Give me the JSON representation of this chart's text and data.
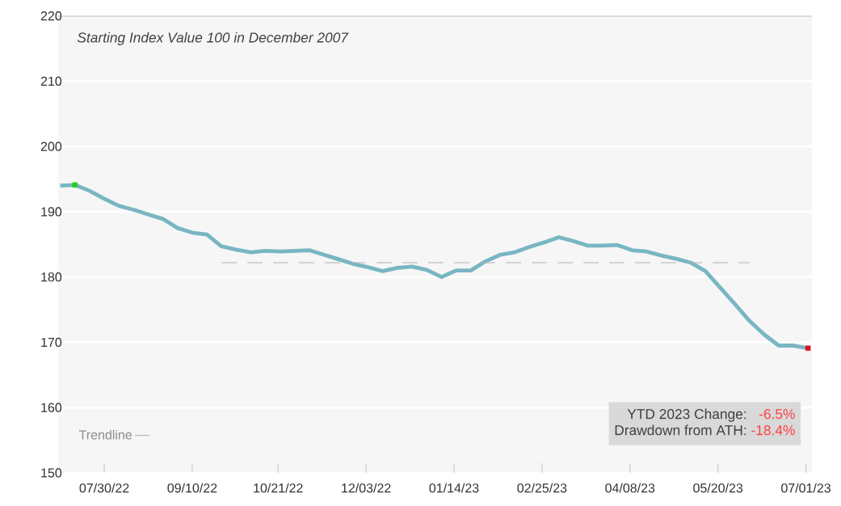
{
  "chart_data": {
    "type": "line",
    "x": [
      "2022-07-09",
      "2022-07-16",
      "2022-07-23",
      "2022-07-30",
      "2022-08-06",
      "2022-08-13",
      "2022-08-20",
      "2022-08-27",
      "2022-09-03",
      "2022-09-10",
      "2022-09-17",
      "2022-09-24",
      "2022-10-01",
      "2022-10-08",
      "2022-10-15",
      "2022-10-22",
      "2022-10-29",
      "2022-11-05",
      "2022-11-12",
      "2022-11-19",
      "2022-11-26",
      "2022-12-03",
      "2022-12-10",
      "2022-12-17",
      "2022-12-24",
      "2022-12-31",
      "2023-01-07",
      "2023-01-14",
      "2023-01-21",
      "2023-01-28",
      "2023-02-04",
      "2023-02-11",
      "2023-02-18",
      "2023-02-25",
      "2023-03-04",
      "2023-03-11",
      "2023-03-18",
      "2023-03-25",
      "2023-04-01",
      "2023-04-08",
      "2023-04-15",
      "2023-04-22",
      "2023-04-29",
      "2023-05-06",
      "2023-05-13",
      "2023-05-20",
      "2023-05-27",
      "2023-06-03",
      "2023-06-10",
      "2023-06-17",
      "2023-06-24",
      "2023-07-01"
    ],
    "series": [
      {
        "color": "#79b6c3",
        "values": [
          194.0,
          194.1,
          193.2,
          192.0,
          190.9,
          190.3,
          189.6,
          188.9,
          187.5,
          186.8,
          186.5,
          184.7,
          184.2,
          183.8,
          184.0,
          183.9,
          184.0,
          184.1,
          183.4,
          182.7,
          182.0,
          181.5,
          180.9,
          181.4,
          181.6,
          181.1,
          180.0,
          181.0,
          181.0,
          182.4,
          183.4,
          183.8,
          184.6,
          185.3,
          186.1,
          185.5,
          184.8,
          184.8,
          184.9,
          184.1,
          183.9,
          183.3,
          182.8,
          182.2,
          180.9,
          178.4,
          175.9,
          173.3,
          171.2,
          169.5,
          169.5,
          169.1
        ]
      },
      {
        "type": "scatter",
        "marker": "square",
        "x": [
          "2022-07-16",
          "2023-07-01"
        ],
        "values": [
          194.1,
          169.1
        ],
        "colors": [
          "#22cc22",
          "#dd1122"
        ]
      },
      {
        "name": "Trendline",
        "color": "#b0b0b0",
        "line_style": "dashed",
        "x": [
          "2022-09-24",
          "2023-06-03"
        ],
        "values": [
          182.2,
          182.2
        ]
      }
    ],
    "xlim": [
      "2022-07-08",
      "2023-07-03"
    ],
    "xticks": [
      {
        "value": "2022-07-30",
        "label": "07/30/22"
      },
      {
        "value": "2022-09-10",
        "label": "09/10/22"
      },
      {
        "value": "2022-10-21",
        "label": "10/21/22"
      },
      {
        "value": "2022-12-02",
        "label": "12/03/22"
      },
      {
        "value": "2023-01-13",
        "label": "01/14/23"
      },
      {
        "value": "2023-02-24",
        "label": "02/25/23"
      },
      {
        "value": "2023-04-07",
        "label": "04/08/23"
      },
      {
        "value": "2023-05-19",
        "label": "05/20/23"
      },
      {
        "value": "2023-06-30",
        "label": "07/01/23"
      }
    ],
    "ylim": [
      150,
      220
    ],
    "yticks": [
      150,
      160,
      170,
      180,
      190,
      200,
      210,
      220
    ],
    "grid": "y",
    "legend": "bottom left",
    "annotations": [
      "Starting Index Value 100 in December 2007",
      "YTD 2023 Change:",
      "-6.5%",
      "Drawdown from ATH:",
      "-18.4%"
    ]
  }
}
